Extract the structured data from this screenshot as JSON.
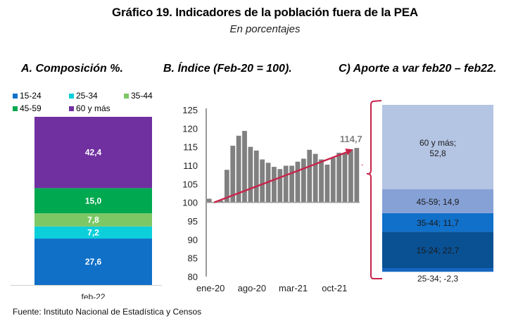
{
  "header": {
    "title": "Gráfico 19. Indicadores de la población fuera de la PEA",
    "subtitle": "En porcentajes"
  },
  "panels": {
    "a_title": "A. Composición %.",
    "b_title": "B. Índice (Feb-20 = 100).",
    "c_title": "C) Aporte a var feb20 – feb22."
  },
  "legend": [
    {
      "label": "15-24",
      "color": "#1070c8"
    },
    {
      "label": "25-34",
      "color": "#0ccfda"
    },
    {
      "label": "35-44",
      "color": "#7dc865"
    },
    {
      "label": "45-59",
      "color": "#00a84f"
    },
    {
      "label": "60 y más",
      "color": "#7030a0"
    }
  ],
  "source": "Fuente: Instituto Nacional de Estadística y Censos",
  "chart_data": [
    {
      "type": "bar",
      "subtype": "stacked-100",
      "title": "A. Composición %.",
      "categories": [
        "feb-22"
      ],
      "series": [
        {
          "name": "15-24",
          "values": [
            27.6
          ],
          "color": "#1070c8",
          "label": "27,6"
        },
        {
          "name": "25-34",
          "values": [
            7.2
          ],
          "color": "#0ccfda",
          "label": "7,2"
        },
        {
          "name": "35-44",
          "values": [
            7.8
          ],
          "color": "#7dc865",
          "label": "7,8"
        },
        {
          "name": "45-59",
          "values": [
            15.0
          ],
          "color": "#00a84f",
          "label": "15,0"
        },
        {
          "name": "60 y más",
          "values": [
            42.4
          ],
          "color": "#7030a0",
          "label": "42,4"
        }
      ],
      "ylim": [
        0,
        100
      ],
      "legend": "top"
    },
    {
      "type": "bar",
      "title": "B. Índice (Feb-20 = 100).",
      "x": [
        "ene-20",
        "feb-20",
        "mar-20",
        "abr-20",
        "may-20",
        "jun-20",
        "jul-20",
        "ago-20",
        "sep-20",
        "oct-20",
        "nov-20",
        "dic-20",
        "ene-21",
        "feb-21",
        "mar-21",
        "abr-21",
        "may-21",
        "jun-21",
        "jul-21",
        "ago-21",
        "sep-21",
        "oct-21",
        "nov-21",
        "dic-21",
        "ene-22",
        "feb-22"
      ],
      "values": [
        101.0,
        100.0,
        100.5,
        108.8,
        115.3,
        118.0,
        119.3,
        115.0,
        114.0,
        111.6,
        110.7,
        109.6,
        109.0,
        109.9,
        109.9,
        111.0,
        111.8,
        114.2,
        113.1,
        111.6,
        110.2,
        112.0,
        113.4,
        113.4,
        114.3,
        114.7
      ],
      "base": 100,
      "xtick_labels": [
        "ene-20",
        "ago-20",
        "mar-21",
        "oct-21"
      ],
      "yticks": [
        80,
        85,
        90,
        95,
        100,
        105,
        110,
        115,
        120,
        125
      ],
      "ylim": [
        80,
        125
      ],
      "last_label": "114,7",
      "trend_arrow": {
        "from": [
          "feb-20",
          100.0
        ],
        "to": [
          "feb-22",
          114.7
        ],
        "color": "#c8234a"
      },
      "bar_color": "#808080"
    },
    {
      "type": "bar",
      "subtype": "stacked-contribution",
      "title": "C) Aporte a var feb20 – feb22.",
      "categories": [
        "feb20–feb22"
      ],
      "series": [
        {
          "name": "25-34",
          "values": [
            -2.3
          ],
          "color": "#1567c0",
          "label": "25-34; -2,3"
        },
        {
          "name": "15-24",
          "values": [
            22.7
          ],
          "color": "#0a5194",
          "label": "15-24; 22,7"
        },
        {
          "name": "35-44",
          "values": [
            11.7
          ],
          "color": "#1170c9",
          "label": "35-44; 11,7"
        },
        {
          "name": "45-59",
          "values": [
            14.9
          ],
          "color": "#86a1d6",
          "label": "45-59; 14,9"
        },
        {
          "name": "60 y más",
          "values": [
            52.8
          ],
          "color": "#b4c4e3",
          "label": "60 y más;\n52,8"
        }
      ],
      "ylim": [
        -2.3,
        102.1
      ],
      "bracket_color": "#c8234a"
    }
  ]
}
